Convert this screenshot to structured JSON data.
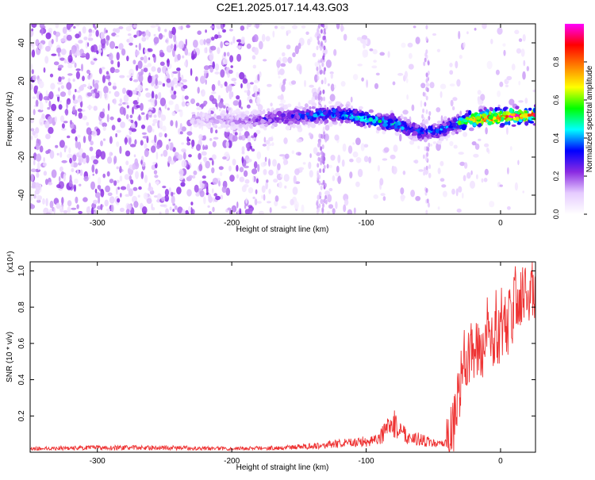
{
  "chart_data": [
    {
      "type": "heatmap",
      "title": "C2E1.2025.017.14.43.G03",
      "xlabel": "Height of straight line (km)",
      "ylabel": "Frequency (Hz)",
      "xlim": [
        -350,
        26
      ],
      "ylim": [
        -50,
        50
      ],
      "xticks": [
        -300,
        -200,
        -100,
        0
      ],
      "yticks": [
        -40,
        -20,
        0,
        20,
        40
      ],
      "colorbar": {
        "label": "Normalized spectral amplitude",
        "range": [
          0,
          1
        ],
        "ticks": [
          "0.0",
          "0.2",
          "0.4",
          "0.6",
          "0.8"
        ],
        "stops": [
          "#ffffff",
          "#e6ccff",
          "#8a2be2",
          "#0000ff",
          "#00ffff",
          "#00ff00",
          "#ffff00",
          "#ff8000",
          "#ff0000",
          "#ff00ff"
        ]
      },
      "ridge": {
        "description_points_km": [
          -220,
          -190,
          -160,
          -140,
          -120,
          -100,
          -80,
          -60,
          -45,
          -35,
          -20,
          0,
          25
        ],
        "center_hz": [
          0,
          -1,
          1,
          2,
          3,
          0,
          -2,
          -7,
          -6,
          -3,
          0,
          1,
          2
        ],
        "peak_amplitude": [
          0.15,
          0.2,
          0.35,
          0.4,
          0.45,
          0.5,
          0.5,
          0.4,
          0.4,
          0.45,
          0.85,
          0.95,
          0.9
        ]
      }
    },
    {
      "type": "line",
      "xlabel": "Height of straight line (km)",
      "ylabel": "SNR (10 * v/v)",
      "scale_label": "(x10⁴)",
      "xlim": [
        -350,
        26
      ],
      "ylim": [
        0,
        1.05
      ],
      "xticks": [
        -300,
        -200,
        -100,
        0
      ],
      "yticks": [
        "0.2",
        "0.4",
        "0.6",
        "0.8",
        "1.0"
      ],
      "series": [
        {
          "color": "#ee3333",
          "envelope_x": [
            -350,
            -300,
            -250,
            -200,
            -160,
            -130,
            -100,
            -90,
            -85,
            -80,
            -75,
            -70,
            -60,
            -50,
            -45,
            -40,
            -35,
            -32,
            -30,
            -27,
            -25,
            -20,
            -15,
            -10,
            -5,
            0,
            5,
            10,
            15,
            20,
            26
          ],
          "envelope_y": [
            0.02,
            0.025,
            0.025,
            0.02,
            0.025,
            0.04,
            0.06,
            0.08,
            0.12,
            0.16,
            0.13,
            0.09,
            0.07,
            0.05,
            0.04,
            0.05,
            0.12,
            0.25,
            0.35,
            0.5,
            0.55,
            0.58,
            0.55,
            0.6,
            0.62,
            0.65,
            0.7,
            0.8,
            0.85,
            0.88,
            0.92
          ]
        }
      ]
    }
  ]
}
